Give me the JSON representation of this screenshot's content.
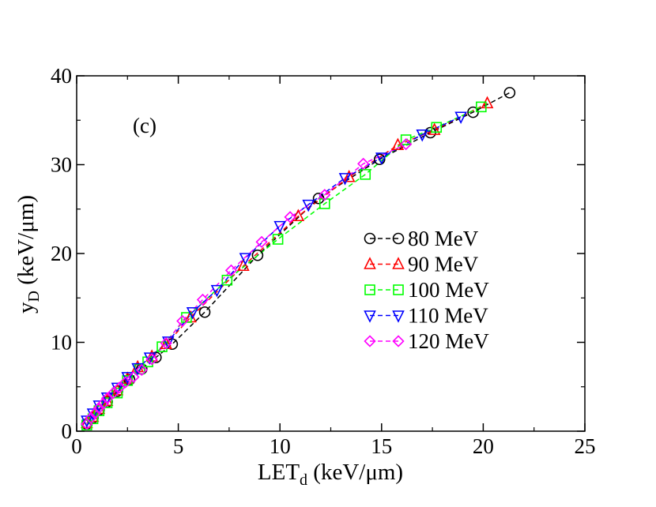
{
  "chart_data": {
    "type": "line",
    "panel_label": "(c)",
    "xlabel": {
      "main": "LET",
      "sub": "d",
      "rest": " (keV/μm)"
    },
    "ylabel": {
      "main": "y",
      "sub": "D",
      "rest": " (keV/μm)"
    },
    "xlim": [
      0,
      25
    ],
    "ylim": [
      0,
      40
    ],
    "x_ticks": [
      0,
      5,
      10,
      15,
      20,
      25
    ],
    "y_ticks": [
      0,
      10,
      20,
      30,
      40
    ],
    "x_tick_labels": [
      "0",
      "5",
      "10",
      "15",
      "20",
      "25"
    ],
    "y_tick_labels": [
      "0",
      "10",
      "20",
      "30",
      "40"
    ],
    "legend_position": "center-right",
    "series": [
      {
        "name": "80 MeV",
        "color": "#000000",
        "marker": "circle",
        "x": [
          0.5,
          0.8,
          1.1,
          1.5,
          2.0,
          2.6,
          3.2,
          3.9,
          4.7,
          6.3,
          8.9,
          11.9,
          14.9,
          17.4,
          19.5,
          21.3
        ],
        "y": [
          0.8,
          1.5,
          2.4,
          3.3,
          4.5,
          5.8,
          7.0,
          8.3,
          9.8,
          13.4,
          19.8,
          26.2,
          30.6,
          33.6,
          35.9,
          38.1
        ]
      },
      {
        "name": "90 MeV",
        "color": "#ff0000",
        "marker": "triangle-up",
        "x": [
          0.5,
          0.8,
          1.1,
          1.5,
          2.0,
          2.5,
          3.0,
          3.7,
          4.4,
          5.6,
          8.2,
          10.9,
          13.4,
          15.8,
          17.6,
          20.2
        ],
        "y": [
          0.9,
          1.6,
          2.5,
          3.4,
          4.6,
          5.9,
          7.2,
          8.4,
          9.8,
          12.8,
          18.6,
          24.2,
          28.6,
          32.2,
          33.9,
          36.9
        ]
      },
      {
        "name": "100 MeV",
        "color": "#00ff00",
        "marker": "square",
        "x": [
          0.5,
          0.8,
          1.1,
          1.5,
          2.0,
          2.5,
          3.1,
          3.5,
          4.2,
          5.4,
          7.4,
          9.9,
          12.2,
          14.2,
          16.2,
          17.7,
          19.9
        ],
        "y": [
          0.7,
          1.4,
          2.3,
          3.2,
          4.3,
          5.7,
          7.0,
          7.8,
          9.5,
          12.8,
          17.0,
          21.6,
          25.6,
          28.9,
          32.8,
          34.2,
          36.5
        ]
      },
      {
        "name": "110 MeV",
        "color": "#0000ff",
        "marker": "triangle-down",
        "x": [
          0.5,
          0.8,
          1.1,
          1.5,
          2.0,
          2.5,
          3.0,
          3.6,
          4.5,
          5.7,
          6.9,
          8.3,
          10.0,
          11.4,
          13.2,
          15.0,
          17.0,
          18.9
        ],
        "y": [
          1.2,
          2.0,
          2.9,
          3.8,
          4.9,
          6.1,
          7.1,
          8.3,
          10.1,
          13.4,
          15.9,
          19.5,
          23.1,
          25.5,
          28.5,
          30.8,
          33.4,
          35.4
        ]
      },
      {
        "name": "120 MeV",
        "color": "#ff00ff",
        "marker": "diamond",
        "x": [
          0.5,
          0.7,
          0.9,
          1.1,
          1.3,
          1.5,
          1.8,
          2.1,
          2.4,
          2.8,
          3.2,
          3.7,
          4.4,
          5.2,
          6.2,
          7.6,
          9.1,
          10.5,
          12.2,
          14.1,
          16.2
        ],
        "y": [
          0.8,
          1.5,
          2.0,
          2.6,
          3.1,
          3.7,
          4.3,
          4.9,
          5.5,
          6.1,
          6.9,
          8.1,
          9.9,
          12.4,
          14.8,
          18.1,
          21.3,
          24.1,
          26.6,
          30.1,
          32.3
        ]
      }
    ]
  }
}
